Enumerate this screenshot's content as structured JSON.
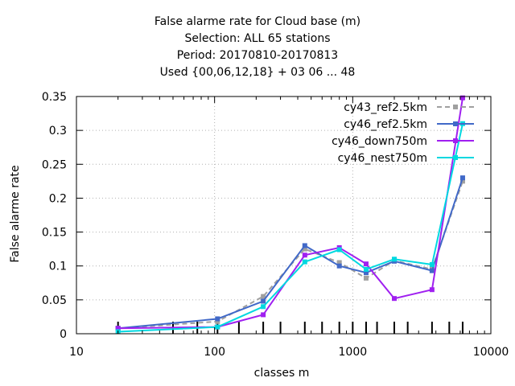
{
  "chart_data": {
    "type": "line",
    "title_lines": [
      "False alarme rate  for Cloud base (m)",
      "Selection: ALL     65 stations",
      "Period: 20170810-20170813",
      "Used {00,06,12,18} + 03 06 ... 48"
    ],
    "xlabel": "classes m",
    "ylabel": "False alarme rate",
    "xscale": "log",
    "xlim": [
      10,
      10000
    ],
    "ylim": [
      0,
      0.35
    ],
    "x_ticks": [
      10,
      100,
      1000,
      10000
    ],
    "x_tick_labels": [
      "10",
      "100",
      "1000",
      "10000"
    ],
    "y_ticks": [
      0,
      0.05,
      0.1,
      0.15,
      0.2,
      0.25,
      0.3,
      0.35
    ],
    "y_tick_labels": [
      "0",
      "0.05",
      "0.1",
      "0.15",
      "0.2",
      "0.25",
      "0.3",
      "0.35"
    ],
    "class_marks": [
      20,
      50,
      75,
      105,
      150,
      225,
      300,
      450,
      600,
      800,
      1000,
      1250,
      1500,
      2000,
      2500,
      3750,
      5000,
      6250
    ],
    "grid": true,
    "legend_position": "top-right",
    "series": [
      {
        "name": "cy43_ref2.5km",
        "color": "#a0a0a0",
        "dashed": true,
        "x": [
          20,
          105,
          225,
          450,
          800,
          1250,
          2000,
          3750,
          6250
        ],
        "y": [
          0.008,
          0.018,
          0.055,
          0.125,
          0.105,
          0.082,
          0.108,
          0.095,
          0.225
        ]
      },
      {
        "name": "cy46_ref2.5km",
        "color": "#4169c8",
        "dashed": false,
        "x": [
          20,
          105,
          225,
          450,
          800,
          1250,
          2000,
          3750,
          6250
        ],
        "y": [
          0.008,
          0.022,
          0.048,
          0.13,
          0.1,
          0.09,
          0.107,
          0.093,
          0.23
        ]
      },
      {
        "name": "cy46_down750m",
        "color": "#a020f0",
        "dashed": false,
        "x": [
          20,
          105,
          225,
          450,
          800,
          1250,
          2000,
          3750,
          6250
        ],
        "y": [
          0.008,
          0.01,
          0.028,
          0.116,
          0.127,
          0.103,
          0.052,
          0.065,
          0.348
        ]
      },
      {
        "name": "cy46_nest750m",
        "color": "#00d8e0",
        "dashed": false,
        "x": [
          20,
          105,
          225,
          450,
          800,
          1250,
          2000,
          3750,
          6250
        ],
        "y": [
          0.003,
          0.01,
          0.04,
          0.106,
          0.124,
          0.095,
          0.11,
          0.102,
          0.31
        ]
      }
    ]
  }
}
